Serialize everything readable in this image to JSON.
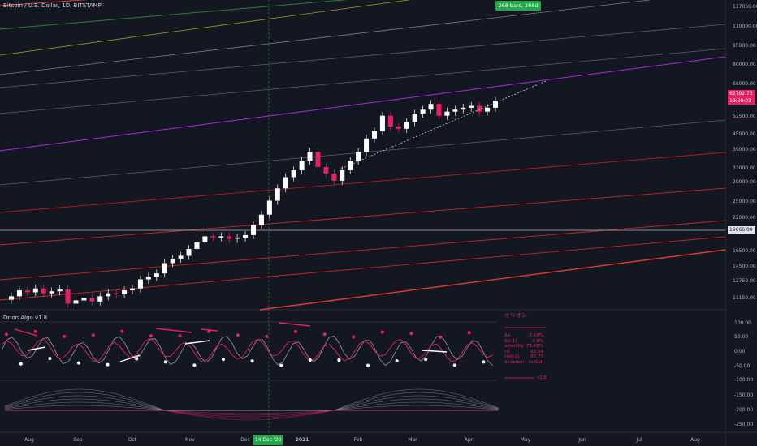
{
  "symbol_title": "Bitcoin / U.S. Dollar, 1D, BITSTAMP",
  "indicator_title": "Orion Algo v1.8",
  "measure_label": "268 bars, 268d",
  "crosshair_date": "14 Dec '20",
  "current_price": "62702.73",
  "countdown": "19:29:03",
  "crosshair_price": "19666.00",
  "indicator_stats": {
    "heading": "オリオン",
    "rows": [
      {
        "label": "Δσ",
        "value": "-3.69%"
      },
      {
        "label": "Δ(t-1)",
        "value": "4.9%"
      },
      {
        "label": "volatility",
        "value": "75.68%"
      },
      {
        "label": "rsi",
        "value": "63.54"
      },
      {
        "label": "rsi(t-1)",
        "value": "65.77"
      },
      {
        "label": "direction",
        "value": "bullish"
      }
    ],
    "version": "v1.8"
  },
  "price_axis": [
    "117050.00",
    "110000.00",
    "95000.00",
    "80000.00",
    "68000.00",
    "52500.00",
    "45000.00",
    "39000.00",
    "33000.00",
    "29000.00",
    "25000.00",
    "22000.00",
    "16500.00",
    "14500.00",
    "12750.00",
    "11150.00"
  ],
  "osc_axis": [
    "100.00",
    "50.00",
    "0.00",
    "-50.00",
    "-100.00",
    "-150.00",
    "-200.00",
    "-250.00"
  ],
  "time_axis": [
    "Aug",
    "Sep",
    "Oct",
    "Nov",
    "Dec",
    "2021",
    "Feb",
    "Mar",
    "Apr",
    "May",
    "Jun",
    "Jul",
    "Aug"
  ],
  "colors": {
    "background": "#131722",
    "up_candle": "#ffffff",
    "down_candle": "#e91e63",
    "accent": "#e91e63",
    "measure_green": "#22ab4a",
    "channel_purple": "#b026d8",
    "channel_red": "#d32f2f"
  },
  "chart_data": {
    "type": "candlestick",
    "title": "Bitcoin / U.S. Dollar, 1D, BITSTAMP",
    "close_series_usd": [
      11200,
      11800,
      11600,
      12000,
      11500,
      11700,
      11900,
      10500,
      10800,
      11000,
      10700,
      11200,
      11500,
      11400,
      11800,
      12000,
      13000,
      13300,
      13700,
      15000,
      15600,
      16000,
      17000,
      18000,
      19000,
      18800,
      19000,
      18600,
      18800,
      19200,
      21000,
      23000,
      26000,
      29000,
      32000,
      34000,
      37000,
      40000,
      35000,
      33000,
      31000,
      34000,
      37000,
      40000,
      45000,
      48000,
      55000,
      50000,
      49000,
      52000,
      56000,
      58000,
      61000,
      55000,
      57000,
      58000,
      59000,
      60000,
      57000,
      59000,
      62702.73
    ],
    "oscillator_range": [
      -250,
      100
    ]
  }
}
